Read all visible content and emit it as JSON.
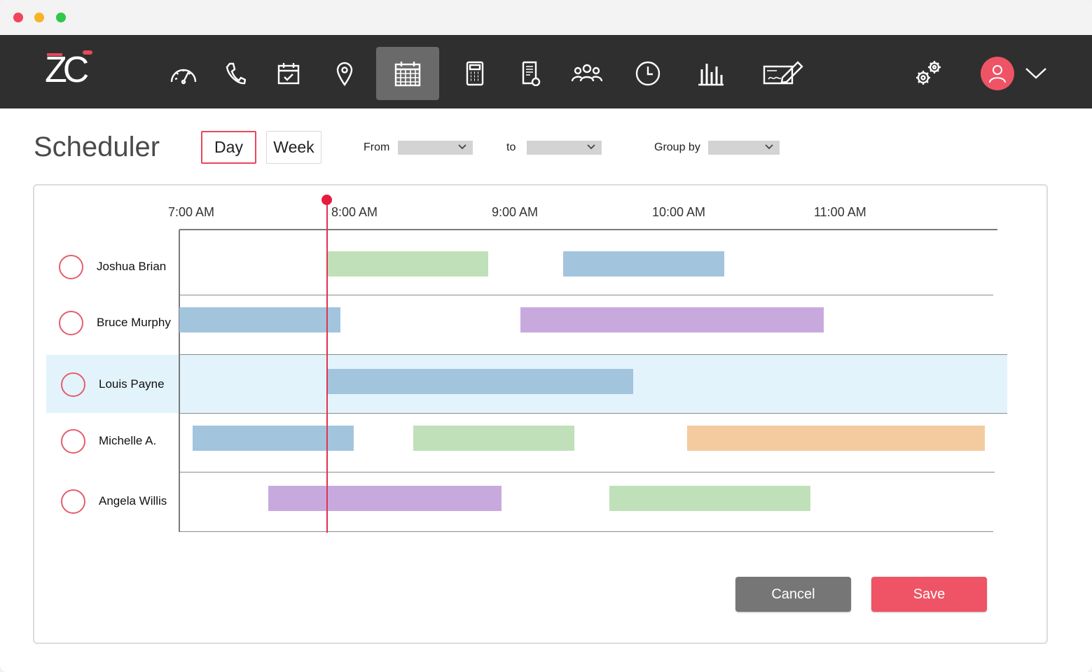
{
  "window": {
    "controls": [
      "close",
      "minimize",
      "maximize"
    ]
  },
  "navbar": {
    "logo": "ZC",
    "icons": [
      {
        "name": "dashboard-speedometer-icon"
      },
      {
        "name": "phone-icon"
      },
      {
        "name": "calendar-check-icon"
      },
      {
        "name": "location-pin-icon"
      },
      {
        "name": "scheduler-calendar-icon",
        "active": true
      },
      {
        "name": "calculator-icon"
      },
      {
        "name": "invoice-document-icon"
      },
      {
        "name": "team-people-icon"
      },
      {
        "name": "clock-icon"
      },
      {
        "name": "bar-chart-icon"
      },
      {
        "name": "signature-check-icon"
      }
    ],
    "settings_icon": "gears-icon",
    "avatar_icon": "user-icon",
    "menu_icon": "chevron-down-icon"
  },
  "page": {
    "title": "Scheduler",
    "view_day": "Day",
    "view_week": "Week",
    "active_view": "Day",
    "from_label": "From",
    "from_value": "",
    "to_label": "to",
    "to_value": "",
    "group_by_label": "Group by",
    "group_by_value": ""
  },
  "timeline": {
    "hours": [
      "7:00 AM",
      "8:00 AM",
      "9:00 AM",
      "10:00 AM",
      "11:00 AM"
    ],
    "current_time": "7:58 AM",
    "selected_row": "Louis Payne",
    "colors": {
      "green": "#bfe0b9",
      "blue": "#a3c4dd",
      "purple": "#c7a9de",
      "orange": "#f3cb9f",
      "highlight": "#e3f3fc",
      "now": "#e0334f"
    },
    "rows": [
      {
        "name": "Joshua Brian",
        "events": [
          {
            "start": "8:00 AM",
            "end": "9:00 AM",
            "color": "green"
          },
          {
            "start": "9:28 AM",
            "end": "10:28 AM",
            "color": "blue"
          }
        ]
      },
      {
        "name": "Bruce Murphy",
        "events": [
          {
            "start": "7:05 AM",
            "end": "8:05 AM",
            "color": "blue"
          },
          {
            "start": "9:12 AM",
            "end": "11:05 AM",
            "color": "purple"
          }
        ]
      },
      {
        "name": "Louis Payne",
        "events": [
          {
            "start": "8:00 AM",
            "end": "9:54 AM",
            "color": "blue"
          }
        ]
      },
      {
        "name": "Michelle A.",
        "events": [
          {
            "start": "7:10 AM",
            "end": "8:10 AM",
            "color": "blue"
          },
          {
            "start": "8:32 AM",
            "end": "9:32 AM",
            "color": "green"
          },
          {
            "start": "10:14 AM",
            "end": "12:05 PM",
            "color": "orange"
          }
        ]
      },
      {
        "name": "Angela Willis",
        "events": [
          {
            "start": "7:38 AM",
            "end": "9:05 AM",
            "color": "purple"
          },
          {
            "start": "9:45 AM",
            "end": "11:00 AM",
            "color": "green"
          }
        ]
      }
    ]
  },
  "actions": {
    "cancel": "Cancel",
    "save": "Save"
  }
}
